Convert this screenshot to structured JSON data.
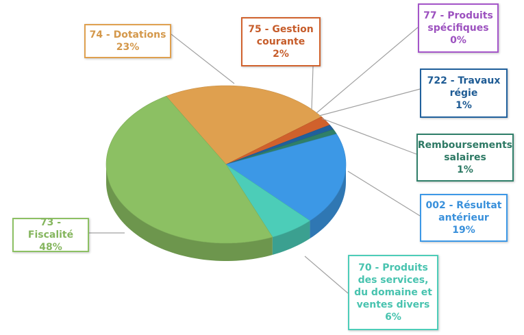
{
  "chart_data": {
    "type": "pie",
    "categories": [
      "74 - Dotations",
      "75 - Gestion courante",
      "77 - Produits spécifiques",
      "722 - Travaux régie",
      "Remboursements salaires",
      "002 - Résultat antérieur",
      "70 - Produits des services, du domaine et ventes divers",
      "73 - Fiscalité"
    ],
    "values": [
      23,
      2,
      0,
      1,
      1,
      19,
      6,
      48
    ],
    "value_labels": [
      "23%",
      "2%",
      "0%",
      "1%",
      "1%",
      "19%",
      "6%",
      "48%"
    ],
    "colors": [
      "#dfa04f",
      "#d0612c",
      "#a455c9",
      "#20609c",
      "#2f7f69",
      "#3c98e6",
      "#4ccdb8",
      "#8cc063"
    ]
  }
}
